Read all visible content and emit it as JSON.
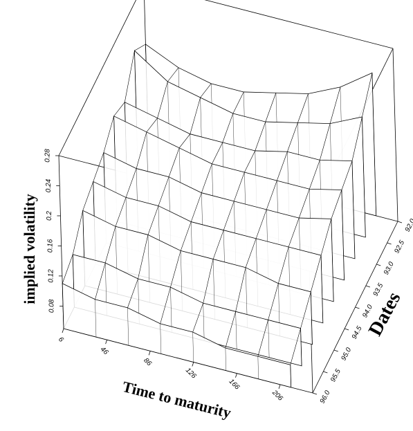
{
  "chart_data": {
    "type": "surface",
    "xlabel": "Time to maturity",
    "ylabel": "Dates",
    "zlabel": "implied volatility",
    "x": [
      6,
      36,
      66,
      96,
      126,
      156,
      186,
      216
    ],
    "y": [
      {
        "value": 92,
        "label": "92.0"
      },
      {
        "value": 92.5,
        "label": "92.5"
      },
      {
        "value": 93,
        "label": "93.0"
      },
      {
        "value": 93.5,
        "label": "93.5"
      },
      {
        "value": 94,
        "label": "94.0"
      },
      {
        "value": 94.5,
        "label": "94.5"
      },
      {
        "value": 95,
        "label": "95.0"
      },
      {
        "value": 95.5,
        "label": "95.5"
      },
      {
        "value": 96,
        "label": "96.0"
      }
    ],
    "z": [
      [
        0.2,
        0.18,
        0.17,
        0.17,
        0.18,
        0.19,
        0.21,
        0.24
      ],
      [
        0.22,
        0.19,
        0.18,
        0.17,
        0.17,
        0.18,
        0.19,
        0.21
      ],
      [
        0.18,
        0.17,
        0.16,
        0.16,
        0.16,
        0.17,
        0.17,
        0.18
      ],
      [
        0.19,
        0.18,
        0.17,
        0.16,
        0.16,
        0.16,
        0.16,
        0.17
      ],
      [
        0.17,
        0.16,
        0.16,
        0.15,
        0.15,
        0.15,
        0.15,
        0.16
      ],
      [
        0.16,
        0.15,
        0.15,
        0.14,
        0.14,
        0.14,
        0.14,
        0.14
      ],
      [
        0.15,
        0.14,
        0.14,
        0.13,
        0.13,
        0.13,
        0.12,
        0.12
      ],
      [
        0.12,
        0.12,
        0.11,
        0.11,
        0.1,
        0.1,
        0.1,
        0.1
      ],
      [
        0.11,
        0.1,
        0.1,
        0.09,
        0.09,
        0.08,
        0.08,
        0.08
      ]
    ],
    "color": "#000000",
    "xlim": [
      6,
      236
    ],
    "xticks": [
      6,
      46,
      86,
      126,
      166,
      206
    ],
    "ylim": [
      92,
      96
    ],
    "yticks": [
      {
        "value": 92,
        "label": "92.0"
      },
      {
        "value": 92.5,
        "label": "92.5"
      },
      {
        "value": 93,
        "label": "93.0"
      },
      {
        "value": 93.5,
        "label": "93.5"
      },
      {
        "value": 94,
        "label": "94.0"
      },
      {
        "value": 94.5,
        "label": "94.5"
      },
      {
        "value": 95,
        "label": "95.0"
      },
      {
        "value": 95.5,
        "label": "95.5"
      },
      {
        "value": 96,
        "label": "96.0"
      }
    ],
    "zlim": [
      0.05,
      0.28
    ],
    "zticks": [
      0.08,
      0.12,
      0.16,
      0.2,
      0.24,
      0.28
    ]
  }
}
